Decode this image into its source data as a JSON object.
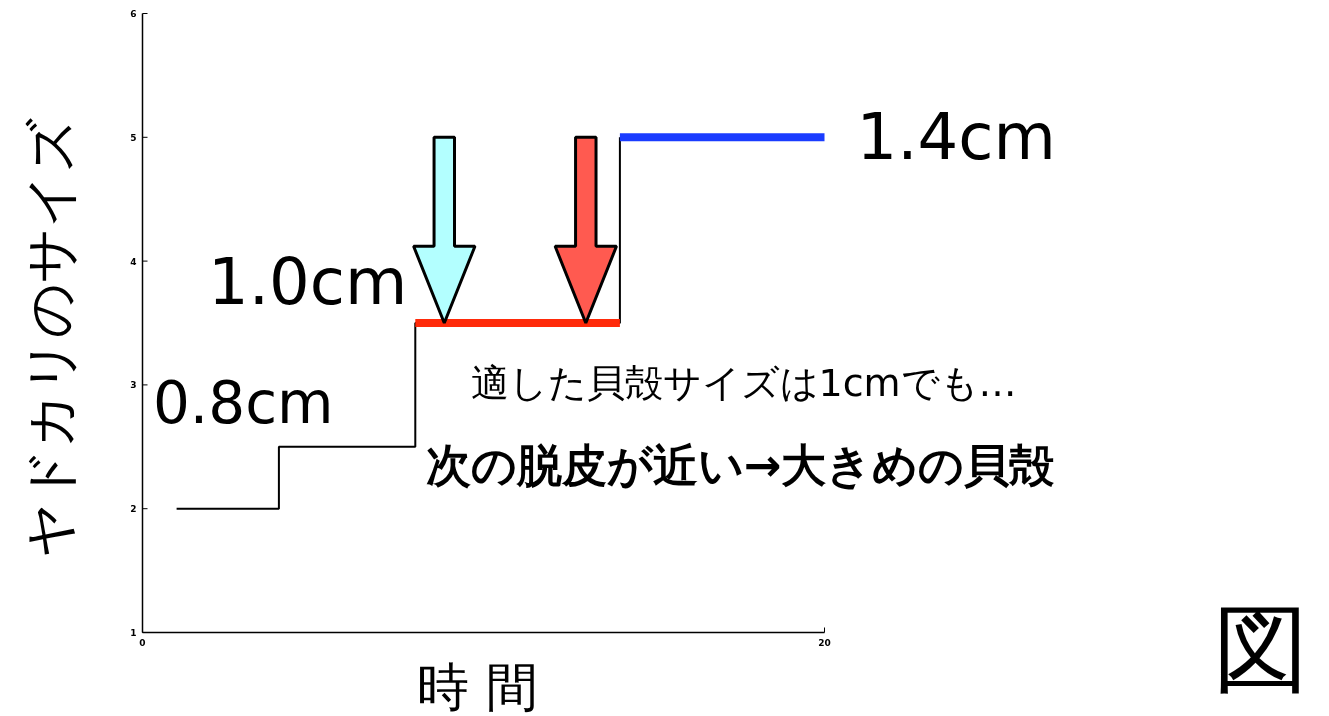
{
  "chart_data": {
    "type": "step",
    "xlabel": "時 間",
    "ylabel": "ヤドカリのサイズ",
    "xlim": [
      0,
      20
    ],
    "xticks": [
      0,
      20
    ],
    "ylim": [
      1,
      6
    ],
    "yticks": [
      1,
      2,
      3,
      4,
      5,
      6
    ],
    "series": [
      {
        "color": "#000000",
        "x": [
          1,
          4,
          8,
          14
        ],
        "values": [
          2,
          2.5,
          3.5,
          5
        ]
      },
      {
        "type": "line",
        "color": "#ff2a0a",
        "x": [
          8,
          14
        ],
        "values": [
          3.5,
          3.5
        ]
      },
      {
        "type": "line",
        "color": "#1a3cff",
        "x": [
          14,
          20
        ],
        "values": [
          5,
          5
        ]
      }
    ],
    "annotations": [
      {
        "text": "0.8cm",
        "x": 4,
        "y": 2.5
      },
      {
        "text": "1.0cm",
        "x": 8,
        "y": 3.5
      },
      {
        "text": "1.4cm",
        "x": 20,
        "y": 5
      },
      "適した貝殻サイズは1cmでも…",
      "次の脱皮が近い→大きめの貝殻",
      "図"
    ],
    "grid": false
  }
}
